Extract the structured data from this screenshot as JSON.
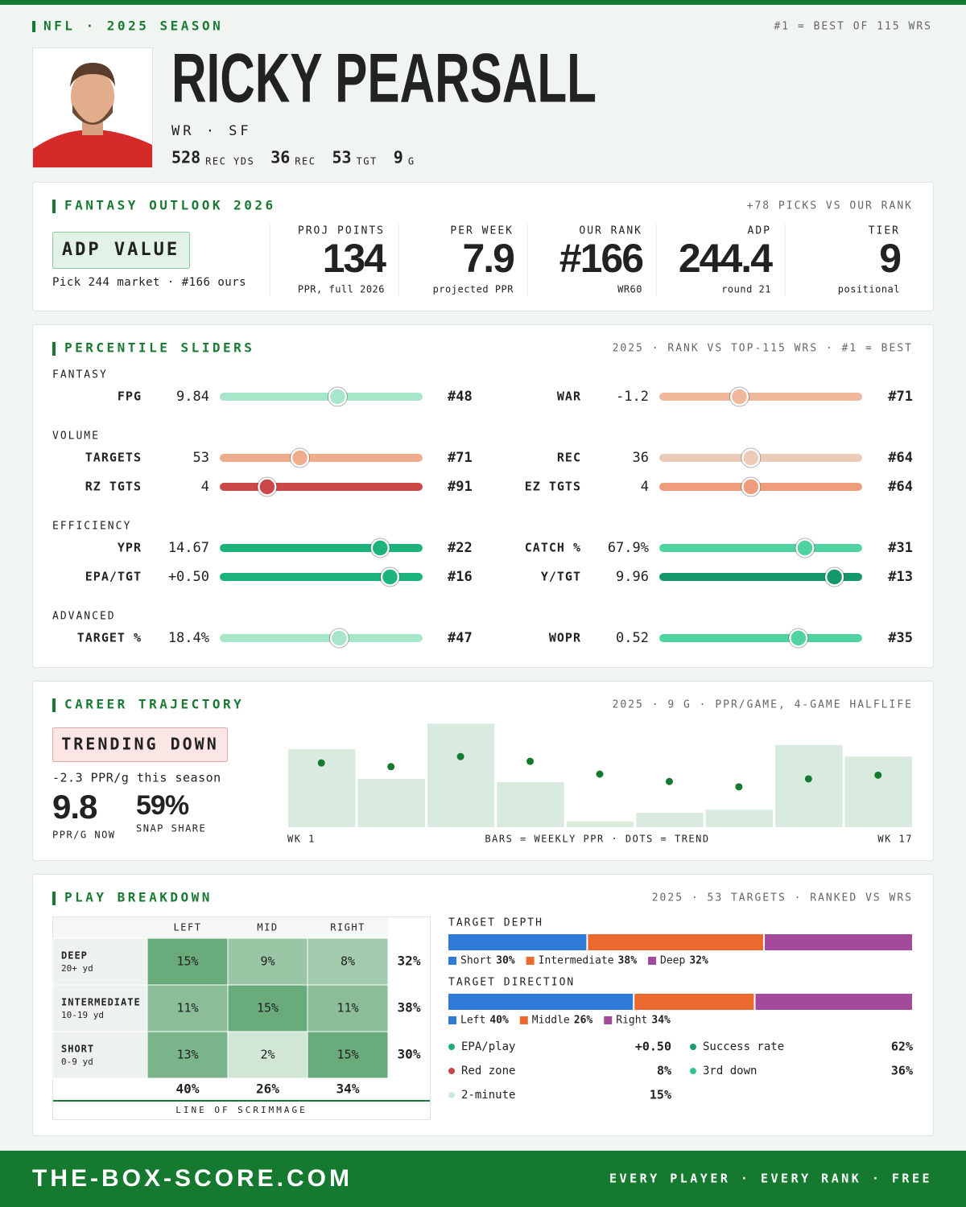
{
  "header": {
    "league": "NFL · 2025 SEASON",
    "rank_note": "#1 = BEST OF 115 WRS",
    "name": "RICKY PEARSALL",
    "position": "WR · SF",
    "stats": [
      {
        "value": "528",
        "label": "REC YDS"
      },
      {
        "value": "36",
        "label": "REC"
      },
      {
        "value": "53",
        "label": "TGT"
      },
      {
        "value": "9",
        "label": "G"
      }
    ]
  },
  "outlook": {
    "title": "FANTASY OUTLOOK 2026",
    "note": "+78 PICKS VS OUR RANK",
    "badge": "ADP VALUE",
    "badge_note": "Pick 244 market · #166 ours",
    "stats": [
      {
        "label": "PROJ POINTS",
        "value": "134",
        "sub": "PPR, full 2026"
      },
      {
        "label": "PER WEEK",
        "value": "7.9",
        "sub": "projected PPR"
      },
      {
        "label": "OUR RANK",
        "value": "#166",
        "sub": "WR60"
      },
      {
        "label": "ADP",
        "value": "244.4",
        "sub": "round 21"
      },
      {
        "label": "TIER",
        "value": "9",
        "sub": "positional"
      }
    ]
  },
  "percentile": {
    "title": "PERCENTILE SLIDERS",
    "note": "2025 · RANK VS TOP-115 WRS · #1 = BEST",
    "rank_range": [
      115,
      1
    ],
    "groups": [
      {
        "name": "FANTASY",
        "rows": [
          [
            {
              "label": "FPG",
              "value": "9.84",
              "rank": 48,
              "rank_label": "#48",
              "color": "#a8e6c9"
            },
            {
              "label": "WAR",
              "value": "-1.2",
              "rank": 71,
              "rank_label": "#71",
              "color": "#f0b89b"
            }
          ]
        ]
      },
      {
        "name": "VOLUME",
        "rows": [
          [
            {
              "label": "TARGETS",
              "value": "53",
              "rank": 71,
              "rank_label": "#71",
              "color": "#f0ad8e"
            },
            {
              "label": "REC",
              "value": "36",
              "rank": 64,
              "rank_label": "#64",
              "color": "#edcbb9"
            }
          ],
          [
            {
              "label": "RZ TGTS",
              "value": "4",
              "rank": 91,
              "rank_label": "#91",
              "color": "#cc4848"
            },
            {
              "label": "EZ TGTS",
              "value": "4",
              "rank": 64,
              "rank_label": "#64",
              "color": "#ef9c7c"
            }
          ]
        ]
      },
      {
        "name": "EFFICIENCY",
        "rows": [
          [
            {
              "label": "YPR",
              "value": "14.67",
              "rank": 22,
              "rank_label": "#22",
              "color": "#1db47c"
            },
            {
              "label": "CATCH %",
              "value": "67.9%",
              "rank": 31,
              "rank_label": "#31",
              "color": "#4fd3a0"
            }
          ],
          [
            {
              "label": "EPA/TGT",
              "value": "+0.50",
              "rank": 16,
              "rank_label": "#16",
              "color": "#1db47c"
            },
            {
              "label": "Y/TGT",
              "value": "9.96",
              "rank": 13,
              "rank_label": "#13",
              "color": "#14986b"
            }
          ]
        ]
      },
      {
        "name": "ADVANCED",
        "rows": [
          [
            {
              "label": "TARGET %",
              "value": "18.4%",
              "rank": 47,
              "rank_label": "#47",
              "color": "#a8e6c9"
            },
            {
              "label": "WOPR",
              "value": "0.52",
              "rank": 35,
              "rank_label": "#35",
              "color": "#4fd3a0"
            }
          ]
        ]
      }
    ]
  },
  "trajectory": {
    "title": "CAREER TRAJECTORY",
    "note": "2025 · 9 G · PPR/GAME, 4-GAME HALFLIFE",
    "badge": "TRENDING DOWN",
    "change": "-2.3 PPR/g this season",
    "ppr_now": "9.8",
    "ppr_now_label": "PPR/G NOW",
    "snap_share": "59%",
    "snap_share_label": "SNAP SHARE"
  },
  "chart_data": {
    "type": "bar",
    "values": [
      14.7,
      9.1,
      19.5,
      8.5,
      1.1,
      2.7,
      3.3,
      15.5,
      13.3
    ],
    "trend": [
      12.1,
      11.4,
      13.3,
      12.4,
      10.0,
      8.6,
      7.6,
      9.1,
      9.8
    ],
    "ylim": [
      0,
      20
    ],
    "color": "#d9ebdf",
    "trend_color": "#157a2f",
    "x_start": "WK 1",
    "x_end": "WK 17",
    "caption": "BARS = WEEKLY PPR · DOTS = TREND"
  },
  "breakdown": {
    "title": "PLAY BREAKDOWN",
    "note": "2025 · 53 TARGETS · RANKED VS WRS",
    "grid": {
      "columns": [
        "LEFT",
        "MID",
        "RIGHT"
      ],
      "rows": [
        {
          "name": "DEEP",
          "range": "20+ yd",
          "values": [
            15,
            9,
            8
          ],
          "value_labels": [
            "15%",
            "9%",
            "8%"
          ],
          "total": "32%"
        },
        {
          "name": "INTERMEDIATE",
          "range": "10-19 yd",
          "values": [
            11,
            15,
            11
          ],
          "value_labels": [
            "11%",
            "15%",
            "11%"
          ],
          "total": "38%"
        },
        {
          "name": "SHORT",
          "range": "0-9 yd",
          "values": [
            13,
            2,
            15
          ],
          "value_labels": [
            "13%",
            "2%",
            "15%"
          ],
          "total": "30%"
        }
      ],
      "column_totals": [
        "40%",
        "26%",
        "34%"
      ],
      "footer": "LINE OF SCRIMMAGE"
    },
    "depth": {
      "title": "TARGET DEPTH",
      "series": [
        {
          "name": "Short",
          "color": "#2f7bd8",
          "value": 30,
          "value_label": "30%"
        },
        {
          "name": "Intermediate",
          "color": "#ea6a2f",
          "value": 38,
          "value_label": "38%"
        },
        {
          "name": "Deep",
          "color": "#a34a9c",
          "value": 32,
          "value_label": "32%"
        }
      ]
    },
    "direction": {
      "title": "TARGET DIRECTION",
      "series": [
        {
          "name": "Left",
          "color": "#2f7bd8",
          "value": 40,
          "value_label": "40%"
        },
        {
          "name": "Middle",
          "color": "#ea6a2f",
          "value": 26,
          "value_label": "26%"
        },
        {
          "name": "Right",
          "color": "#a34a9c",
          "value": 34,
          "value_label": "34%"
        }
      ]
    },
    "metrics": [
      {
        "name": "EPA/play",
        "value": "+0.50",
        "color": "#1fae74"
      },
      {
        "name": "Success rate",
        "value": "62%",
        "color": "#1a9e6a"
      },
      {
        "name": "Red zone",
        "value": "8%",
        "color": "#c94444"
      },
      {
        "name": "3rd down",
        "value": "36%",
        "color": "#2ec48a"
      },
      {
        "name": "2-minute",
        "value": "15%",
        "color": "#cce8d8"
      }
    ]
  },
  "footer": {
    "site": "THE-BOX-SCORE.COM",
    "tagline": "EVERY PLAYER · EVERY RANK · FREE"
  }
}
